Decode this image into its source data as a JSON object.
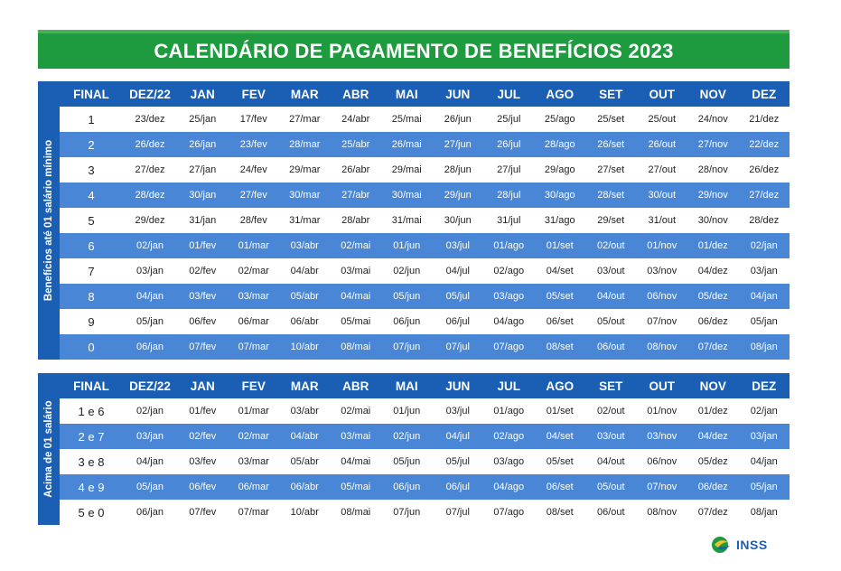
{
  "title": "CALENDÁRIO DE PAGAMENTO DE BENEFÍCIOS 2023",
  "logo_text": "INSS",
  "colors": {
    "green": "#1e9a3f",
    "blue": "#1a5fb4",
    "stripe": "#4a86d6"
  },
  "headers": [
    "FINAL",
    "DEZ/22",
    "JAN",
    "FEV",
    "MAR",
    "ABR",
    "MAI",
    "JUN",
    "JUL",
    "AGO",
    "SET",
    "OUT",
    "NOV",
    "DEZ"
  ],
  "section1": {
    "side_label": "Benefícios até 01 salário mínimo",
    "rows": [
      [
        "1",
        "23/dez",
        "25/jan",
        "17/fev",
        "27/mar",
        "24/abr",
        "25/mai",
        "26/jun",
        "25/jul",
        "25/ago",
        "25/set",
        "25/out",
        "24/nov",
        "21/dez"
      ],
      [
        "2",
        "26/dez",
        "26/jan",
        "23/fev",
        "28/mar",
        "25/abr",
        "26/mai",
        "27/jun",
        "26/jul",
        "28/ago",
        "26/set",
        "26/out",
        "27/nov",
        "22/dez"
      ],
      [
        "3",
        "27/dez",
        "27/jan",
        "24/fev",
        "29/mar",
        "26/abr",
        "29/mai",
        "28/jun",
        "27/jul",
        "29/ago",
        "27/set",
        "27/out",
        "28/nov",
        "26/dez"
      ],
      [
        "4",
        "28/dez",
        "30/jan",
        "27/fev",
        "30/mar",
        "27/abr",
        "30/mai",
        "29/jun",
        "28/jul",
        "30/ago",
        "28/set",
        "30/out",
        "29/nov",
        "27/dez"
      ],
      [
        "5",
        "29/dez",
        "31/jan",
        "28/fev",
        "31/mar",
        "28/abr",
        "31/mai",
        "30/jun",
        "31/jul",
        "31/ago",
        "29/set",
        "31/out",
        "30/nov",
        "28/dez"
      ],
      [
        "6",
        "02/jan",
        "01/fev",
        "01/mar",
        "03/abr",
        "02/mai",
        "01/jun",
        "03/jul",
        "01/ago",
        "01/set",
        "02/out",
        "01/nov",
        "01/dez",
        "02/jan"
      ],
      [
        "7",
        "03/jan",
        "02/fev",
        "02/mar",
        "04/abr",
        "03/mai",
        "02/jun",
        "04/jul",
        "02/ago",
        "04/set",
        "03/out",
        "03/nov",
        "04/dez",
        "03/jan"
      ],
      [
        "8",
        "04/jan",
        "03/fev",
        "03/mar",
        "05/abr",
        "04/mai",
        "05/jun",
        "05/jul",
        "03/ago",
        "05/set",
        "04/out",
        "06/nov",
        "05/dez",
        "04/jan"
      ],
      [
        "9",
        "05/jan",
        "06/fev",
        "06/mar",
        "06/abr",
        "05/mai",
        "06/jun",
        "06/jul",
        "04/ago",
        "06/set",
        "05/out",
        "07/nov",
        "06/dez",
        "05/jan"
      ],
      [
        "0",
        "06/jan",
        "07/fev",
        "07/mar",
        "10/abr",
        "08/mai",
        "07/jun",
        "07/jul",
        "07/ago",
        "08/set",
        "06/out",
        "08/nov",
        "07/dez",
        "08/jan"
      ]
    ]
  },
  "section2": {
    "side_label": "Acima de 01 salário",
    "rows": [
      [
        "1 e 6",
        "02/jan",
        "01/fev",
        "01/mar",
        "03/abr",
        "02/mai",
        "01/jun",
        "03/jul",
        "01/ago",
        "01/set",
        "02/out",
        "01/nov",
        "01/dez",
        "02/jan"
      ],
      [
        "2 e 7",
        "03/jan",
        "02/fev",
        "02/mar",
        "04/abr",
        "03/mai",
        "02/jun",
        "04/jul",
        "02/ago",
        "04/set",
        "03/out",
        "03/nov",
        "04/dez",
        "03/jan"
      ],
      [
        "3 e 8",
        "04/jan",
        "03/fev",
        "03/mar",
        "05/abr",
        "04/mai",
        "05/jun",
        "05/jul",
        "03/ago",
        "05/set",
        "04/out",
        "06/nov",
        "05/dez",
        "04/jan"
      ],
      [
        "4 e 9",
        "05/jan",
        "06/fev",
        "06/mar",
        "06/abr",
        "05/mai",
        "06/jun",
        "06/jul",
        "04/ago",
        "06/set",
        "05/out",
        "07/nov",
        "06/dez",
        "05/jan"
      ],
      [
        "5 e 0",
        "06/jan",
        "07/fev",
        "07/mar",
        "10/abr",
        "08/mai",
        "07/jun",
        "07/jul",
        "07/ago",
        "08/set",
        "06/out",
        "08/nov",
        "07/dez",
        "08/jan"
      ]
    ]
  }
}
